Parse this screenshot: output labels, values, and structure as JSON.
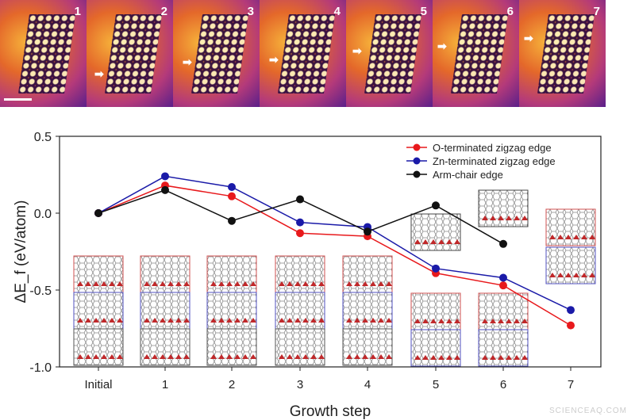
{
  "image_strip": {
    "panels": [
      "1",
      "2",
      "3",
      "4",
      "5",
      "6",
      "7"
    ],
    "arrow_icon": "right-arrow-icon"
  },
  "chart_data": {
    "type": "line",
    "title": "",
    "xlabel": "Growth step",
    "ylabel": "ΔE_f (eV/atom)",
    "categories": [
      "Initial",
      "1",
      "2",
      "3",
      "4",
      "5",
      "6",
      "7"
    ],
    "ylim": [
      -1.0,
      0.5
    ],
    "yticks": [
      "0.5",
      "0.0",
      "-0.5",
      "-1.0"
    ],
    "ytick_values": [
      0.5,
      0.0,
      -0.5,
      -1.0
    ],
    "grid": false,
    "legend_placement": "top-right",
    "series": [
      {
        "name": "O-terminated zigzag edge",
        "color": "#e8191c",
        "values": [
          0,
          0.18,
          0.11,
          -0.13,
          -0.15,
          -0.39,
          -0.47,
          -0.73
        ]
      },
      {
        "name": "Zn-terminated zigzag edge",
        "color": "#1a1aa8",
        "values": [
          0,
          0.24,
          0.17,
          -0.06,
          -0.09,
          -0.36,
          -0.42,
          -0.63
        ]
      },
      {
        "name": "Arm-chair edge",
        "color": "#111111",
        "values": [
          0,
          0.15,
          -0.05,
          0.09,
          -0.12,
          0.05,
          -0.2,
          null
        ]
      }
    ]
  },
  "watermark": "SCIENCEAQ.COM"
}
